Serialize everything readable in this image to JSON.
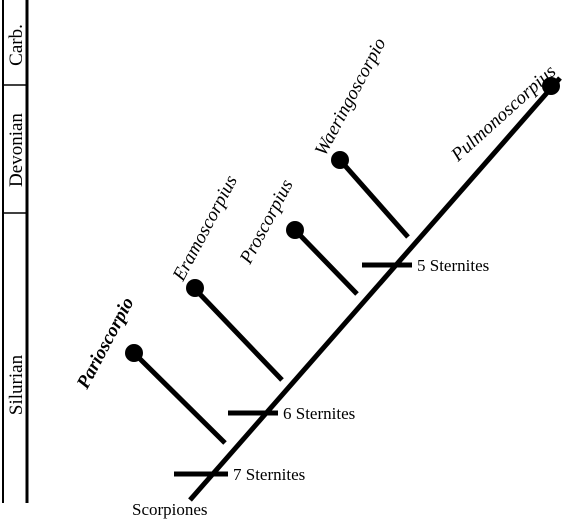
{
  "timescale": {
    "periods": [
      "Carb.",
      "Devonian",
      "Silurian"
    ]
  },
  "taxa": {
    "parioscorpio": "Parioscorpio",
    "eramoscorpius": "Eramoscorpius",
    "proscorpius": "Proscorpius",
    "waeringoscorpio": "Waeringoscorpio",
    "pulmonoscorpius": "Pulmonoscorpius"
  },
  "characters": {
    "seven_sternites": "7 Sternites",
    "six_sternites": "6 Sternites",
    "five_sternites": "5 Sternites"
  },
  "root_label": "Scorpiones",
  "colors": {
    "line": "#000000",
    "background": "#ffffff"
  }
}
